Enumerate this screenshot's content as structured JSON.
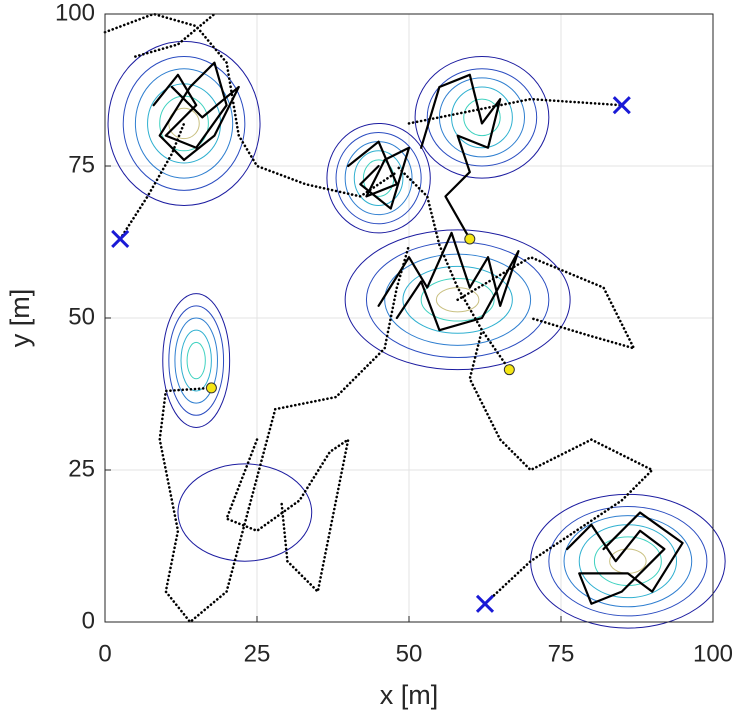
{
  "chart_data": {
    "type": "line",
    "xlabel": "x [m]",
    "ylabel": "y [m]",
    "xlim": [
      0,
      100
    ],
    "ylim": [
      0,
      100
    ],
    "xticks": [
      0,
      25,
      50,
      75,
      100
    ],
    "yticks": [
      0,
      25,
      50,
      75,
      100
    ],
    "grid": true,
    "contour_colors": [
      "#1c1ca0",
      "#2a4cc0",
      "#2f7fd0",
      "#2fb0d0",
      "#3fd2c0",
      "#c9c080"
    ],
    "contours": [
      {
        "cx": 13,
        "cy": 82,
        "rx": [
          12.5,
          10,
          8,
          6,
          4,
          2.5
        ],
        "ry": [
          13.5,
          11,
          9,
          6.5,
          4.5,
          2.5
        ]
      },
      {
        "cx": 45,
        "cy": 73,
        "rx": [
          8.5,
          7,
          5.5,
          4,
          2.5
        ],
        "ry": [
          9,
          7.5,
          6,
          4.5,
          3
        ]
      },
      {
        "cx": 62,
        "cy": 83,
        "rx": [
          11,
          9,
          7,
          5,
          3
        ],
        "ry": [
          10,
          8,
          6.5,
          5,
          3
        ]
      },
      {
        "cx": 58,
        "cy": 53,
        "rx": [
          18.5,
          15,
          12,
          9,
          6,
          3.5
        ],
        "ry": [
          11.5,
          9.5,
          7.5,
          5.5,
          3.5,
          2
        ]
      },
      {
        "cx": 15,
        "cy": 43,
        "rx": [
          5.5,
          4.5,
          3.5,
          2.5,
          1.5
        ],
        "ry": [
          11,
          9,
          7,
          5,
          3
        ]
      },
      {
        "cx": 23,
        "cy": 18,
        "rx": [
          11
        ],
        "ry": [
          8
        ]
      },
      {
        "cx": 86,
        "cy": 10,
        "rx": [
          16,
          13,
          10.5,
          8,
          5.5,
          3
        ],
        "ry": [
          11,
          9,
          7.5,
          6,
          4,
          2
        ]
      }
    ],
    "series": [
      {
        "color": "#000000",
        "style": "dotted",
        "x": [
          2.5,
          7,
          11,
          13
        ],
        "y": [
          63,
          70,
          77,
          82
        ]
      },
      {
        "color": "#000000",
        "style": "solid",
        "x": [
          8,
          12,
          15,
          10,
          15,
          20,
          18,
          14,
          9,
          13,
          18,
          22,
          16,
          11
        ],
        "y": [
          85,
          90,
          85,
          80,
          78,
          85,
          92,
          88,
          80,
          76,
          80,
          88,
          83,
          88
        ]
      },
      {
        "color": "#000000",
        "style": "dotted",
        "x": [
          0,
          8,
          15,
          20,
          22,
          25,
          33,
          42,
          48
        ],
        "y": [
          97,
          100,
          98,
          92,
          80,
          75,
          72,
          70,
          74
        ]
      },
      {
        "color": "#000000",
        "style": "dotted",
        "x": [
          5,
          12,
          18
        ],
        "y": [
          93,
          95,
          100
        ]
      },
      {
        "color": "#000000",
        "style": "solid",
        "x": [
          40,
          45,
          48,
          43,
          46,
          50,
          47,
          42,
          45
        ],
        "y": [
          75,
          79,
          72,
          70,
          76,
          78,
          68,
          72,
          75
        ]
      },
      {
        "color": "#000000",
        "style": "solid",
        "x": [
          52,
          55,
          60,
          62,
          65,
          63,
          58,
          60,
          56,
          60
        ],
        "y": [
          78,
          88,
          90,
          82,
          86,
          78,
          80,
          74,
          70,
          63
        ]
      },
      {
        "color": "#000000",
        "style": "dotted",
        "x": [
          50,
          60,
          70,
          85
        ],
        "y": [
          82,
          84,
          86,
          85
        ]
      },
      {
        "color": "#000000",
        "style": "solid",
        "x": [
          45,
          50,
          53,
          57,
          60,
          63,
          65,
          68,
          62,
          55,
          52,
          48
        ],
        "y": [
          52,
          60,
          55,
          64,
          55,
          60,
          52,
          61,
          50,
          48,
          56,
          50
        ]
      },
      {
        "color": "#000000",
        "style": "dotted",
        "x": [
          66.5,
          62,
          58,
          55,
          53,
          48
        ],
        "y": [
          41.5,
          48,
          55,
          62,
          70,
          75
        ]
      },
      {
        "color": "#000000",
        "style": "dotted",
        "x": [
          58,
          70,
          82,
          87,
          80,
          70
        ],
        "y": [
          53,
          60,
          55,
          45,
          47,
          50
        ]
      },
      {
        "color": "#000000",
        "style": "dotted",
        "x": [
          17.5,
          10,
          9,
          12,
          10,
          14,
          20,
          24,
          28,
          38,
          46,
          48,
          50
        ],
        "y": [
          38.5,
          38,
          30,
          15,
          5,
          0,
          5,
          20,
          35,
          37,
          45,
          55,
          62
        ]
      },
      {
        "color": "#000000",
        "style": "dotted",
        "x": [
          25,
          20,
          25,
          32,
          37,
          40,
          38,
          35,
          30,
          29
        ],
        "y": [
          30,
          17,
          15,
          20,
          28,
          30,
          20,
          5,
          10,
          20
        ]
      },
      {
        "color": "#000000",
        "style": "dotted",
        "x": [
          62.5,
          70,
          85,
          90,
          80,
          70,
          65,
          60,
          62
        ],
        "y": [
          3,
          10,
          20,
          25,
          30,
          25,
          30,
          40,
          48
        ]
      },
      {
        "color": "#000000",
        "style": "solid",
        "x": [
          76,
          80,
          84,
          88,
          92,
          85,
          80,
          78,
          86,
          90,
          95,
          88,
          82
        ],
        "y": [
          12,
          16,
          10,
          15,
          12,
          5,
          3,
          8,
          8,
          5,
          13,
          18,
          12
        ]
      }
    ],
    "markers": [
      {
        "shape": "x",
        "color": "#1a1ad6",
        "x": [
          2.5,
          85,
          62.5
        ],
        "y": [
          63,
          85,
          3
        ]
      },
      {
        "shape": "circle",
        "color": "#f5e614",
        "x": [
          60,
          66.5,
          17.5
        ],
        "y": [
          63,
          41.5,
          38.5
        ]
      }
    ]
  }
}
